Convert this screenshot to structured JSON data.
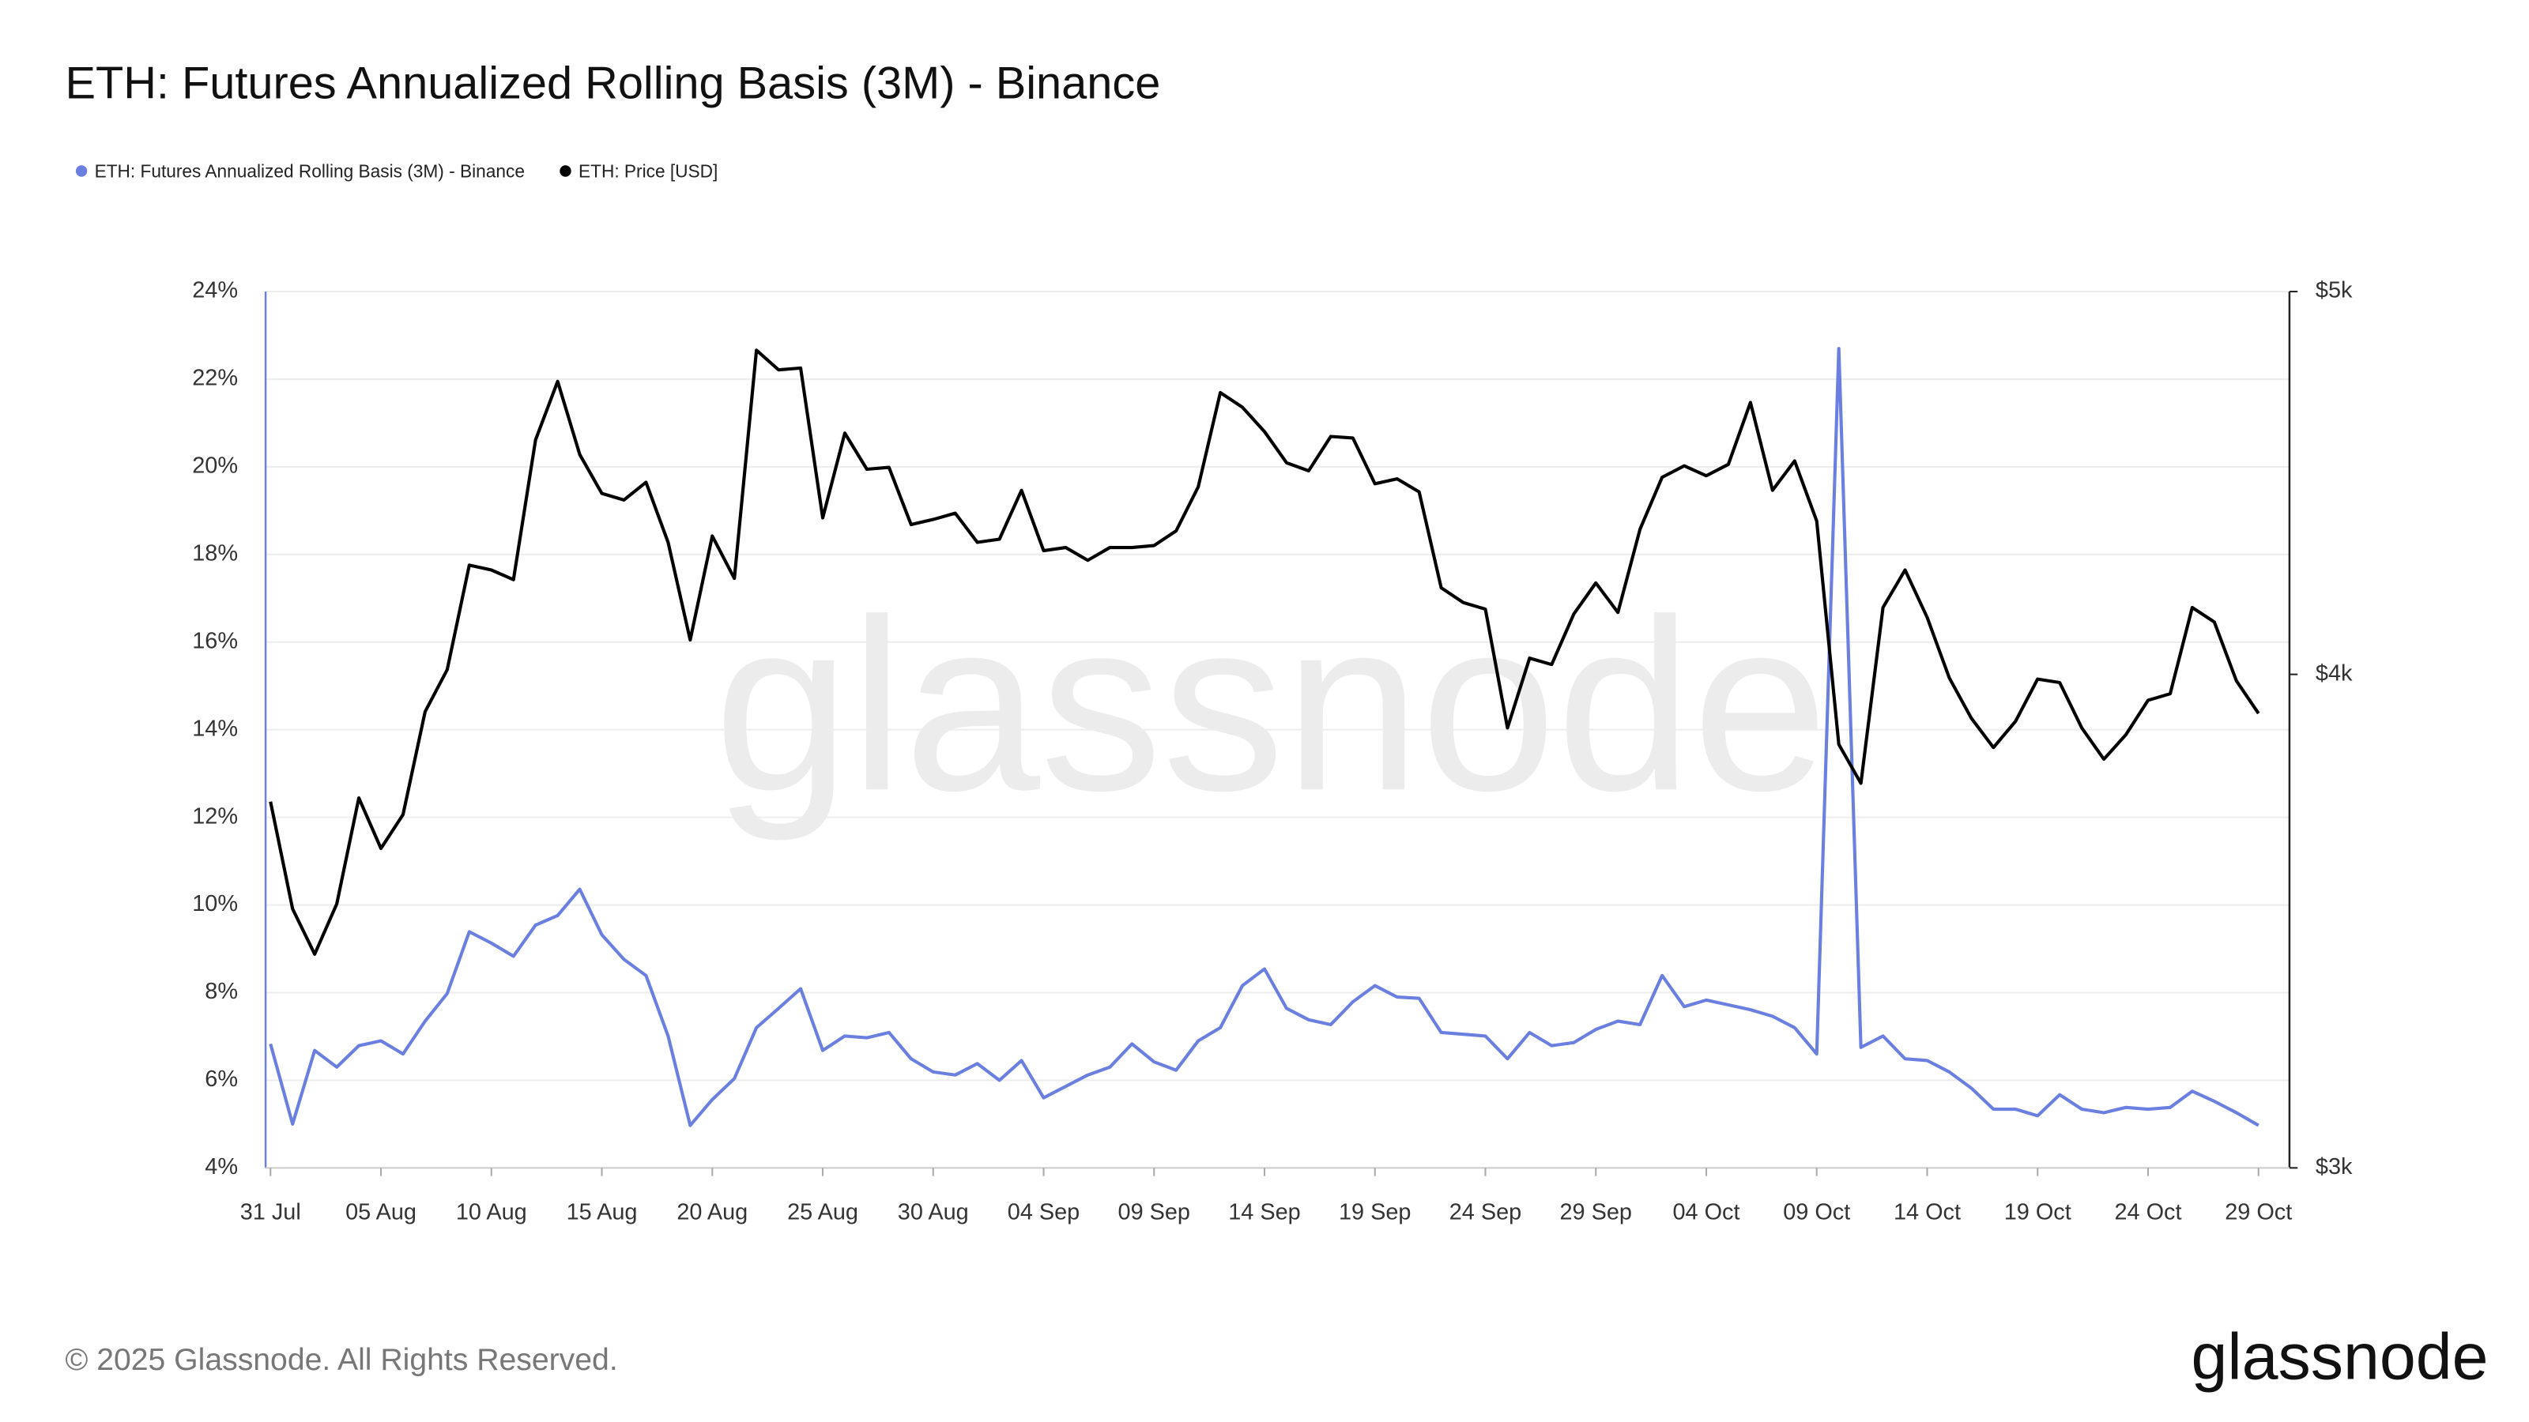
{
  "chart_data": {
    "type": "line",
    "title": "ETH: Futures Annualized Rolling Basis (3M) - Binance",
    "watermark": "glassnode",
    "footer": "© 2025 Glassnode. All Rights Reserved.",
    "logo": "glassnode",
    "categories": [
      "31 Jul",
      null,
      null,
      null,
      null,
      "05 Aug",
      null,
      null,
      null,
      null,
      "10 Aug",
      null,
      null,
      null,
      null,
      "15 Aug",
      null,
      null,
      null,
      null,
      "20 Aug",
      null,
      null,
      null,
      null,
      "25 Aug",
      null,
      null,
      null,
      null,
      "30 Aug",
      null,
      null,
      null,
      null,
      "04 Sep",
      null,
      null,
      null,
      null,
      "09 Sep",
      null,
      null,
      null,
      null,
      "14 Sep",
      null,
      null,
      null,
      null,
      "19 Sep",
      null,
      null,
      null,
      null,
      "24 Sep",
      null,
      null,
      null,
      null,
      "29 Sep",
      null,
      null,
      null,
      null,
      "04 Oct",
      null,
      null,
      null,
      null,
      "09 Oct",
      null,
      null,
      null,
      null,
      "14 Oct",
      null,
      null,
      null,
      null,
      "19 Oct",
      null,
      null,
      null,
      null,
      "24 Oct",
      null,
      null,
      null,
      null,
      "29 Oct"
    ],
    "series": [
      {
        "name": "ETH: Futures Annualized Rolling Basis (3M) - Binance",
        "color": "#6a7fdf",
        "axis": "y",
        "values": [
          6.83,
          5.0,
          6.68,
          6.3,
          6.79,
          6.9,
          6.6,
          7.35,
          7.98,
          9.39,
          9.13,
          8.83,
          9.54,
          9.76,
          10.36,
          9.32,
          8.76,
          8.39,
          7.01,
          4.97,
          5.56,
          6.04,
          7.2,
          7.64,
          8.09,
          6.68,
          7.01,
          6.97,
          7.09,
          6.49,
          6.19,
          6.12,
          6.38,
          6.0,
          6.45,
          5.6,
          5.86,
          6.12,
          6.3,
          6.83,
          6.42,
          6.23,
          6.9,
          7.2,
          8.16,
          8.54,
          7.64,
          7.38,
          7.27,
          7.79,
          8.16,
          7.9,
          7.87,
          7.09,
          7.05,
          7.01,
          6.49,
          7.09,
          6.79,
          6.86,
          7.16,
          7.35,
          7.27,
          8.39,
          7.68,
          7.83,
          7.72,
          7.61,
          7.46,
          7.2,
          6.6,
          22.7,
          6.75,
          7.01,
          6.49,
          6.45,
          6.19,
          5.82,
          5.34,
          5.34,
          5.19,
          5.67,
          5.34,
          5.26,
          5.38,
          5.34,
          5.38,
          5.75,
          5.52,
          5.26,
          4.97
        ]
      },
      {
        "name": "ETH: Price [USD]",
        "color": "#000000",
        "axis": "y2",
        "values": [
          3714,
          3489,
          3398,
          3499,
          3722,
          3614,
          3686,
          3914,
          4011,
          4263,
          4251,
          4227,
          4586,
          4745,
          4547,
          4445,
          4428,
          4474,
          4320,
          4081,
          4336,
          4230,
          4832,
          4777,
          4782,
          4382,
          4604,
          4508,
          4513,
          4365,
          4378,
          4394,
          4320,
          4328,
          4453,
          4299,
          4307,
          4275,
          4307,
          4307,
          4312,
          4349,
          4462,
          4714,
          4674,
          4608,
          4525,
          4504,
          4595,
          4591,
          4470,
          4483,
          4449,
          4207,
          4171,
          4155,
          3877,
          4038,
          4023,
          4143,
          4219,
          4147,
          4353,
          4487,
          4517,
          4491,
          4521,
          4687,
          4453,
          4530,
          4374,
          3840,
          3754,
          4159,
          4251,
          4135,
          3992,
          3899,
          3833,
          3892,
          3989,
          3981,
          3877,
          3807,
          3862,
          3940,
          3955,
          4159,
          4124,
          3985,
          3910
        ]
      }
    ],
    "ylim": [
      4,
      24
    ],
    "yticks": [
      {
        "value": 4,
        "label": "4%"
      },
      {
        "value": 6,
        "label": "6%"
      },
      {
        "value": 8,
        "label": "8%"
      },
      {
        "value": 10,
        "label": "10%"
      },
      {
        "value": 12,
        "label": "12%"
      },
      {
        "value": 14,
        "label": "14%"
      },
      {
        "value": 16,
        "label": "16%"
      },
      {
        "value": 18,
        "label": "18%"
      },
      {
        "value": 20,
        "label": "20%"
      },
      {
        "value": 22,
        "label": "22%"
      },
      {
        "value": 24,
        "label": "24%"
      }
    ],
    "y2lim": [
      3000,
      5000
    ],
    "y2ticks": [
      {
        "value": 3000,
        "label": "$3k"
      },
      {
        "value": 4000,
        "label": "$4k"
      },
      {
        "value": 5000,
        "label": "$5k"
      }
    ],
    "y2scale": "log",
    "grid": true
  }
}
